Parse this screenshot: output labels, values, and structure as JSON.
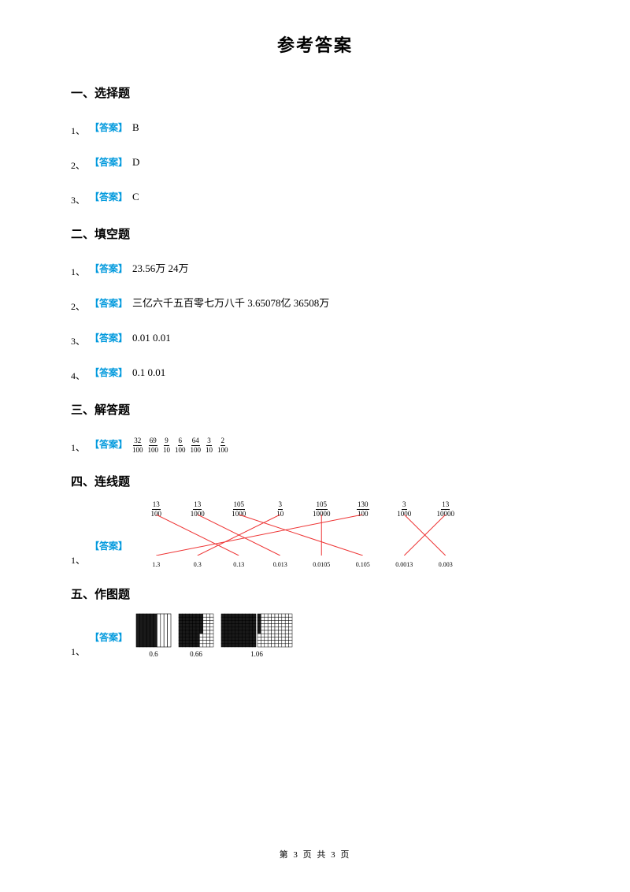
{
  "title": "参考答案",
  "sections": {
    "s1": {
      "head": "一、选择题",
      "items": [
        {
          "num": "1、",
          "label": "【答案】",
          "text": "B"
        },
        {
          "num": "2、",
          "label": "【答案】",
          "text": "D"
        },
        {
          "num": "3、",
          "label": "【答案】",
          "text": "C"
        }
      ]
    },
    "s2": {
      "head": "二、填空题",
      "items": [
        {
          "num": "1、",
          "label": "【答案】",
          "text": "23.56万 24万"
        },
        {
          "num": "2、",
          "label": "【答案】",
          "text": "三亿六千五百零七万八千 3.65078亿 36508万"
        },
        {
          "num": "3、",
          "label": "【答案】",
          "text": "0.01 0.01"
        },
        {
          "num": "4、",
          "label": "【答案】",
          "text": "0.1 0.01"
        }
      ]
    },
    "s3": {
      "head": "三、解答题",
      "item": {
        "num": "1、",
        "label": "【答案】",
        "fractions": [
          {
            "num": "32",
            "den": "100"
          },
          {
            "num": "69",
            "den": "100"
          },
          {
            "num": "9",
            "den": "10"
          },
          {
            "num": "6",
            "den": "100"
          },
          {
            "num": "64",
            "den": "100"
          },
          {
            "num": "3",
            "den": "10"
          },
          {
            "num": "2",
            "den": "100"
          }
        ]
      }
    },
    "s4": {
      "head": "四、连线题",
      "item": {
        "num": "1、",
        "label": "【答案】",
        "top_fracs": [
          {
            "num": "13",
            "den": "100"
          },
          {
            "num": "13",
            "den": "1000"
          },
          {
            "num": "105",
            "den": "1000"
          },
          {
            "num": "3",
            "den": "10"
          },
          {
            "num": "105",
            "den": "10000"
          },
          {
            "num": "130",
            "den": "100"
          },
          {
            "num": "3",
            "den": "1000"
          },
          {
            "num": "13",
            "den": "10000"
          }
        ],
        "bottom_vals": [
          "1.3",
          "0.3",
          "0.13",
          "0.013",
          "0.0105",
          "0.105",
          "0.0013",
          "0.003"
        ],
        "lines": [
          {
            "top_idx": 0,
            "bot_idx": 2
          },
          {
            "top_idx": 1,
            "bot_idx": 3
          },
          {
            "top_idx": 2,
            "bot_idx": 5
          },
          {
            "top_idx": 3,
            "bot_idx": 1
          },
          {
            "top_idx": 4,
            "bot_idx": 4
          },
          {
            "top_idx": 5,
            "bot_idx": 0
          },
          {
            "top_idx": 6,
            "bot_idx": 7
          },
          {
            "top_idx": 7,
            "bot_idx": 6
          }
        ],
        "line_color": "#ee3333"
      }
    },
    "s5": {
      "head": "五、作图题",
      "item": {
        "num": "1、",
        "label": "【答案】",
        "grids": [
          {
            "label": "0.6",
            "cols": 10,
            "rows": 1,
            "fill_cols": 6,
            "w": 46,
            "h": 44,
            "double": false
          },
          {
            "label": "0.66",
            "cols": 10,
            "rows": 10,
            "fill_cells": 66,
            "w": 46,
            "h": 44,
            "double": false
          },
          {
            "label": "1.06",
            "cols": 10,
            "rows": 10,
            "fill_full": true,
            "extra_fill_cells": 6,
            "w": 92,
            "h": 44,
            "double": true
          }
        ],
        "cell_border": "#000000",
        "fill_color": "#1a1a1a"
      }
    }
  },
  "footer": "第 3 页 共 3 页",
  "colors": {
    "label": "#0099dd",
    "text": "#000000",
    "bg": "#ffffff"
  }
}
